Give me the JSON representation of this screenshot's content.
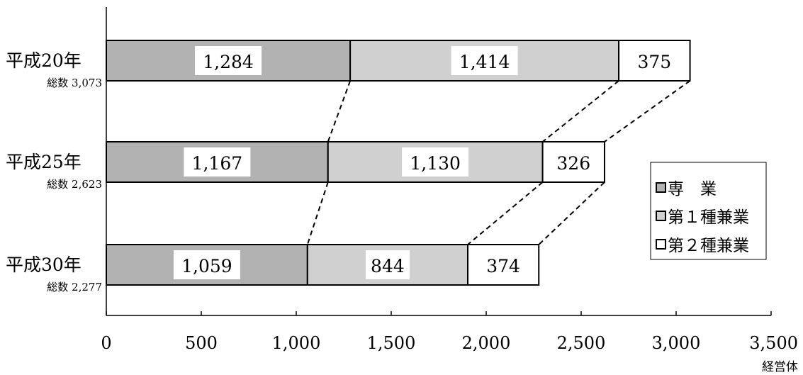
{
  "chart_data": {
    "type": "bar",
    "orientation": "horizontal",
    "stacked": true,
    "categories": [
      "平成20年",
      "平成25年",
      "平成30年"
    ],
    "totals_labels": [
      "総数 3,073",
      "総数 2,623",
      "総数 2,277"
    ],
    "series": [
      {
        "name": "専　業",
        "values": [
          1284,
          1167,
          1059
        ],
        "labels": [
          "1,284",
          "1,167",
          "1,059"
        ],
        "color": "#b2b2b2"
      },
      {
        "name": "第１種兼業",
        "values": [
          1414,
          1130,
          844
        ],
        "labels": [
          "1,414",
          "1,130",
          "844"
        ],
        "color": "#d0d0d0"
      },
      {
        "name": "第２種兼業",
        "values": [
          375,
          326,
          374
        ],
        "labels": [
          "375",
          "326",
          "374"
        ],
        "color": "#ffffff"
      }
    ],
    "xlim": [
      0,
      3500
    ],
    "xticks": [
      0,
      500,
      1000,
      1500,
      2000,
      2500,
      3000,
      3500
    ],
    "xtick_labels": [
      "0",
      "500",
      "1,000",
      "1,500",
      "2,000",
      "2,500",
      "3,000",
      "3,500"
    ],
    "xlabel": "経営体",
    "connector_lines": "dashed",
    "legend_position": "right",
    "grid": false
  }
}
